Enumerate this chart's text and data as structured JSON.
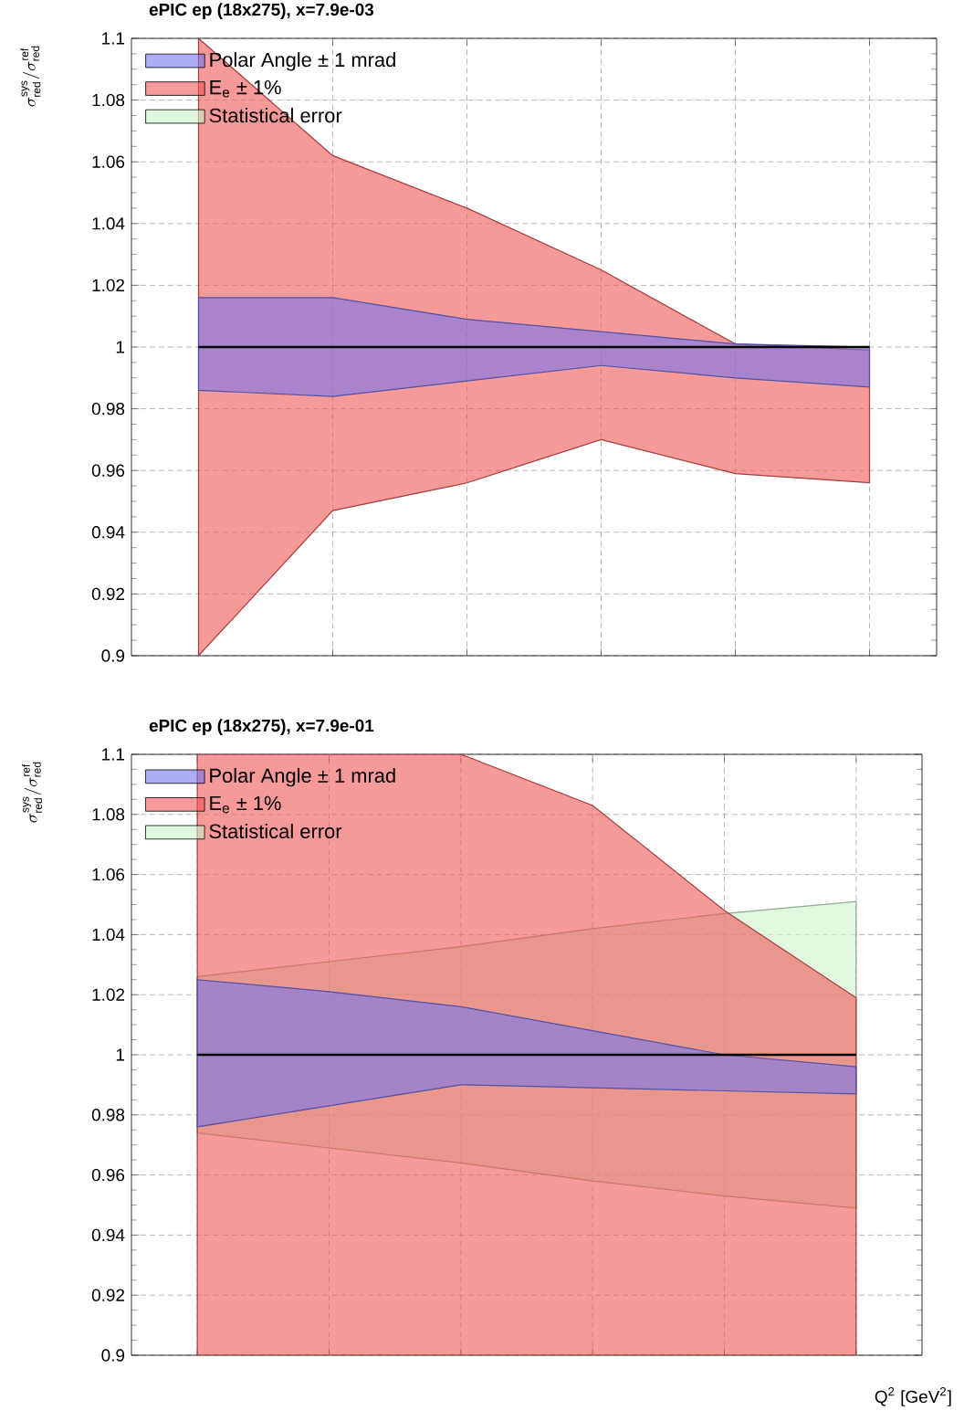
{
  "chart_data": [
    {
      "type": "line",
      "title": "ePIC ep (18x275), x=7.9e-03",
      "ylabel": "\\sigma^{\\mathrm{sys}}_{\\mathrm{red}}/\\sigma^{\\mathrm{ref}}_{\\mathrm{red}}",
      "categories": [
        null,
        null,
        null,
        null,
        null,
        null
      ],
      "ylim": [
        0.9,
        1.1
      ],
      "yticks": [
        0.9,
        0.92,
        0.94,
        0.96,
        0.98,
        1,
        1.02,
        1.04,
        1.06,
        1.08,
        1.1
      ],
      "grid": true,
      "legend": "top left",
      "tick_labels": "y",
      "series": [
        {
          "name": "Polar Angle  ± 1 mrad",
          "color": "#7777ee",
          "values": [
            null,
            null,
            null,
            null,
            null,
            null
          ],
          "lower": [
            0.986,
            0.984,
            0.989,
            0.994,
            0.99,
            0.987
          ],
          "upper": [
            1.016,
            1.016,
            1.009,
            1.005,
            1.001,
            1.0
          ]
        },
        {
          "name": "E$_{e}$  ± 1%",
          "color": "#ee5555",
          "values": [
            null,
            null,
            null,
            null,
            null,
            null
          ],
          "lower": [
            0.9,
            0.947,
            0.956,
            0.97,
            0.959,
            0.956
          ],
          "upper": [
            1.1,
            1.062,
            1.045,
            1.025,
            1.001,
            0.999
          ]
        },
        {
          "name": "Statistical error",
          "color": "#ccf2cc",
          "values": [
            null,
            null,
            null,
            null,
            null,
            null
          ]
        },
        {
          "color": "#000000",
          "values": [
            1,
            1,
            1,
            1,
            1,
            1
          ]
        }
      ]
    },
    {
      "type": "line",
      "title": "ePIC ep (18x275), x=7.9e-01",
      "ylabel": "\\sigma^{\\mathrm{sys}}_{\\mathrm{red}}/\\sigma^{\\mathrm{ref}}_{\\mathrm{red}}",
      "xlabel": "Q$^{2}$ [GeV$^{2}$]",
      "categories": [
        null,
        null,
        null,
        null,
        null,
        null
      ],
      "ylim": [
        0.9,
        1.1
      ],
      "yticks": [
        0.9,
        0.92,
        0.94,
        0.96,
        0.98,
        1,
        1.02,
        1.04,
        1.06,
        1.08,
        1.1
      ],
      "grid": true,
      "legend": "top left",
      "tick_labels": "y",
      "series": [
        {
          "name": "Polar Angle  ± 1 mrad",
          "color": "#7777ee",
          "values": [
            null,
            null,
            null,
            null,
            null,
            null
          ],
          "lower": [
            0.976,
            0.983,
            0.99,
            0.989,
            0.988,
            0.987
          ],
          "upper": [
            1.025,
            1.021,
            1.016,
            1.008,
            1.0,
            0.996
          ]
        },
        {
          "name": "E$_{e}$  ± 1%",
          "color": "#ee5555",
          "values": [
            null,
            null,
            null,
            null,
            null,
            null
          ],
          "lower": [
            0.9,
            0.9,
            0.9,
            0.9,
            0.9,
            0.9
          ],
          "upper": [
            1.1,
            1.1,
            1.1,
            1.083,
            1.048,
            1.019
          ]
        },
        {
          "name": "Statistical error",
          "color": "#ccf2cc",
          "values": [
            null,
            null,
            null,
            null,
            null,
            null
          ],
          "lower": [
            0.974,
            0.969,
            0.964,
            0.958,
            0.953,
            0.949
          ],
          "upper": [
            1.026,
            1.031,
            1.036,
            1.042,
            1.047,
            1.051
          ]
        },
        {
          "color": "#000000",
          "values": [
            1,
            1,
            1,
            1,
            1,
            1
          ]
        }
      ]
    }
  ]
}
